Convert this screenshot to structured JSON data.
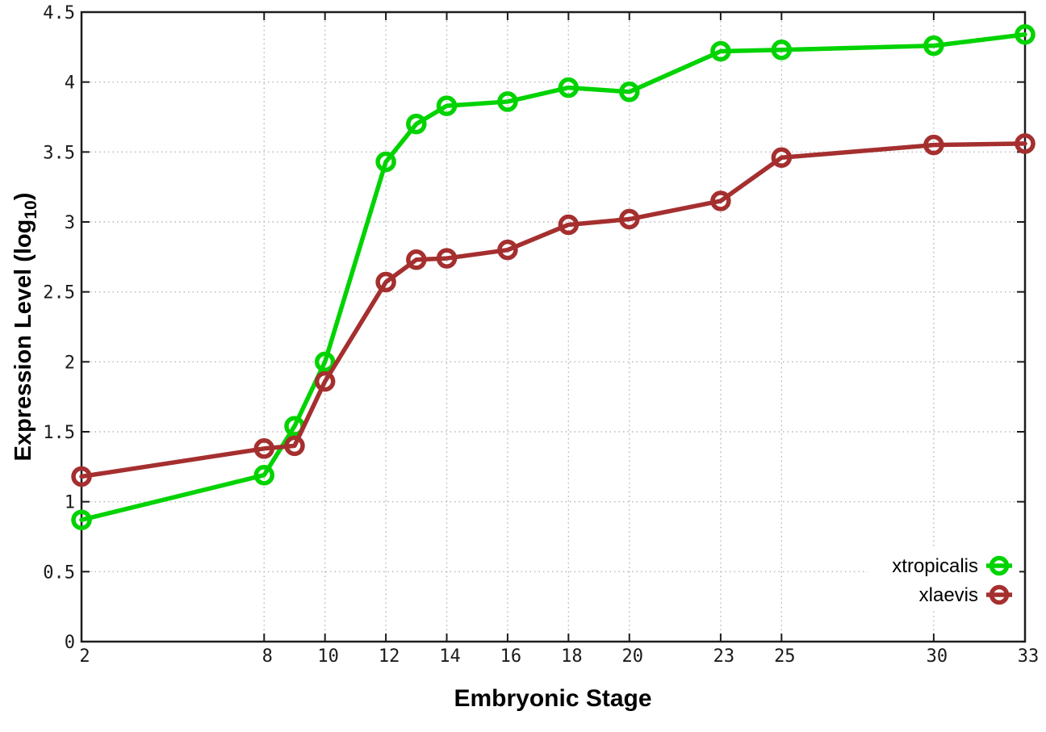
{
  "chart_data": {
    "type": "line",
    "title": "",
    "xlabel": "Embryonic Stage",
    "ylabel": "Expression Level (log10)",
    "ylabel_parts": {
      "pre": "Expression Level (log",
      "sub": "10",
      "post": ")"
    },
    "xlim": [
      2,
      33
    ],
    "ylim": [
      0,
      4.5
    ],
    "grid": true,
    "grid_style": "dotted",
    "legend_position": "inside-bottom-right",
    "x": [
      2,
      8,
      9,
      10,
      12,
      13,
      14,
      16,
      18,
      20,
      23,
      25,
      30,
      33
    ],
    "xticks": [
      {
        "label": "2",
        "value": 2
      },
      {
        "label": "8",
        "value": 8
      },
      {
        "label": "10",
        "value": 10
      },
      {
        "label": "12",
        "value": 12
      },
      {
        "label": "14",
        "value": 14
      },
      {
        "label": "16",
        "value": 16
      },
      {
        "label": "18",
        "value": 18
      },
      {
        "label": "20",
        "value": 20
      },
      {
        "label": "23",
        "value": 23
      },
      {
        "label": "25",
        "value": 25
      },
      {
        "label": "30",
        "value": 30
      },
      {
        "label": "33",
        "value": 33
      }
    ],
    "yticks": [
      {
        "label": "0",
        "value": 0
      },
      {
        "label": "0.5",
        "value": 0.5
      },
      {
        "label": "1",
        "value": 1
      },
      {
        "label": "1.5",
        "value": 1.5
      },
      {
        "label": "2",
        "value": 2
      },
      {
        "label": "2.5",
        "value": 2.5
      },
      {
        "label": "3",
        "value": 3
      },
      {
        "label": "3.5",
        "value": 3.5
      },
      {
        "label": "4",
        "value": 4
      },
      {
        "label": "4.5",
        "value": 4.5
      }
    ],
    "series": [
      {
        "name": "xtropicalis",
        "color": "#00d300",
        "marker": "open-circle",
        "values": [
          0.87,
          1.19,
          1.54,
          2.0,
          3.43,
          3.7,
          3.83,
          3.86,
          3.96,
          3.93,
          4.22,
          4.23,
          4.26,
          4.34
        ]
      },
      {
        "name": "xlaevis",
        "color": "#a52f2f",
        "marker": "open-circle",
        "values": [
          1.18,
          1.38,
          1.4,
          1.86,
          2.57,
          2.73,
          2.74,
          2.8,
          2.98,
          3.02,
          3.15,
          3.46,
          3.55,
          3.56
        ]
      }
    ],
    "colors": {
      "grid": "#b5b5b5",
      "border": "#1c1c1c",
      "tick_text": "#1a1a1a",
      "background": "#ffffff"
    }
  }
}
